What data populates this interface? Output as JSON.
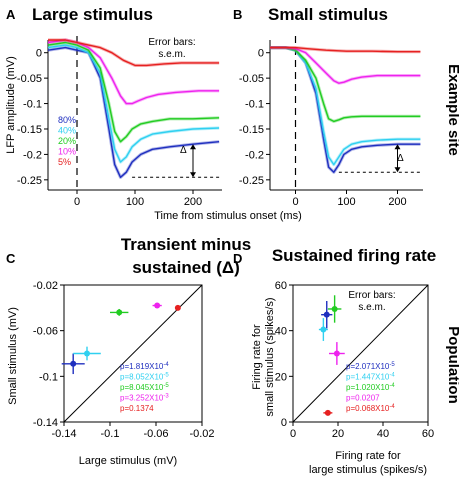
{
  "panels": {
    "A": {
      "letter": "A",
      "title": "Large stimulus",
      "delta": "Δ"
    },
    "B": {
      "letter": "B",
      "title": "Small stimulus",
      "delta": "Δ"
    },
    "C": {
      "letter": "C",
      "title_line1": "Transient minus",
      "title_line2": "sustained (Δ)"
    },
    "D": {
      "letter": "D",
      "title": "Sustained firing rate"
    }
  },
  "side_labels": {
    "top": "Example site",
    "bottom": "Population"
  },
  "labels": {
    "top_ylabel": "LFP amplitude (mV)",
    "top_xlabel": "Time from stimulus onset (ms)",
    "errorbars_line1": "Error bars:",
    "errorbars_line2": "s.e.m.",
    "c_ylabel": "Small stimulus (mV)",
    "c_xlabel": "Large stimulus (mV)",
    "d_ylabel_line1": "Firing rate for",
    "d_ylabel_line2": "small stimulus (spikes/s)",
    "d_xlabel_line1": "Firing rate for",
    "d_xlabel_line2": "large stimulus (spikes/s)"
  },
  "legend": [
    {
      "label": "80%",
      "color": "#1f2fbf"
    },
    {
      "label": "40%",
      "color": "#2fd0f0"
    },
    {
      "label": "20%",
      "color": "#22cc22"
    },
    {
      "label": "10%",
      "color": "#ee22ee"
    },
    {
      "label": "5%",
      "color": "#e62020"
    }
  ],
  "chart_data": [
    {
      "type": "line",
      "panel": "A",
      "xlim": [
        -50,
        250
      ],
      "ylim": [
        -0.27,
        0.025
      ],
      "xticks": [
        0,
        100,
        200
      ],
      "yticks": [
        0,
        -0.05,
        -0.1,
        -0.15,
        -0.2,
        -0.25
      ],
      "ytick_labels": [
        "0",
        "-0.05",
        "-0.1",
        "-0.15",
        "-0.2",
        "-0.25"
      ],
      "series": [
        {
          "name": "80%",
          "color": "#1f2fbf",
          "x": [
            -50,
            -20,
            0,
            20,
            40,
            55,
            65,
            75,
            85,
            95,
            110,
            130,
            160,
            200,
            245
          ],
          "y": [
            0.005,
            0.01,
            0.005,
            0.0,
            -0.05,
            -0.15,
            -0.22,
            -0.245,
            -0.235,
            -0.215,
            -0.2,
            -0.19,
            -0.185,
            -0.18,
            -0.175
          ]
        },
        {
          "name": "40%",
          "color": "#2fd0f0",
          "x": [
            -50,
            -20,
            0,
            20,
            40,
            55,
            65,
            75,
            85,
            95,
            110,
            130,
            160,
            200,
            245
          ],
          "y": [
            0.01,
            0.015,
            0.01,
            0.0,
            -0.04,
            -0.13,
            -0.19,
            -0.215,
            -0.205,
            -0.185,
            -0.17,
            -0.16,
            -0.155,
            -0.15,
            -0.148
          ]
        },
        {
          "name": "20%",
          "color": "#22cc22",
          "x": [
            -50,
            -20,
            0,
            20,
            40,
            55,
            65,
            75,
            85,
            95,
            110,
            130,
            160,
            200,
            245
          ],
          "y": [
            0.015,
            0.02,
            0.015,
            0.005,
            -0.03,
            -0.1,
            -0.155,
            -0.175,
            -0.165,
            -0.15,
            -0.14,
            -0.135,
            -0.13,
            -0.13,
            -0.128
          ]
        },
        {
          "name": "10%",
          "color": "#ee22ee",
          "x": [
            -50,
            -20,
            0,
            20,
            40,
            60,
            75,
            85,
            95,
            105,
            120,
            140,
            170,
            210,
            245
          ],
          "y": [
            0.02,
            0.025,
            0.02,
            0.01,
            -0.01,
            -0.05,
            -0.085,
            -0.1,
            -0.1,
            -0.095,
            -0.088,
            -0.082,
            -0.078,
            -0.075,
            -0.075
          ]
        },
        {
          "name": "5%",
          "color": "#e62020",
          "x": [
            -50,
            -20,
            0,
            20,
            40,
            60,
            80,
            100,
            120,
            150,
            180,
            210,
            245
          ],
          "y": [
            0.025,
            0.025,
            0.02,
            0.015,
            0.01,
            0.0,
            -0.015,
            -0.025,
            -0.025,
            -0.022,
            -0.02,
            -0.02,
            -0.02
          ]
        }
      ]
    },
    {
      "type": "line",
      "panel": "B",
      "xlim": [
        -50,
        250
      ],
      "ylim": [
        -0.27,
        0.025
      ],
      "xticks": [
        0,
        100,
        200
      ],
      "yticks": [
        0,
        -0.05,
        -0.1,
        -0.15,
        -0.2,
        -0.25
      ],
      "ytick_labels": [
        "0",
        "-0.05",
        "-0.1",
        "-0.15",
        "-0.2",
        "-0.25"
      ],
      "series": [
        {
          "name": "80%",
          "color": "#1f2fbf",
          "x": [
            -50,
            -20,
            0,
            20,
            40,
            55,
            65,
            75,
            85,
            95,
            110,
            130,
            160,
            200,
            245
          ],
          "y": [
            0.01,
            0.01,
            0.005,
            -0.02,
            -0.08,
            -0.17,
            -0.225,
            -0.235,
            -0.22,
            -0.2,
            -0.19,
            -0.185,
            -0.182,
            -0.18,
            -0.18
          ]
        },
        {
          "name": "40%",
          "color": "#2fd0f0",
          "x": [
            -50,
            -20,
            0,
            20,
            40,
            55,
            65,
            75,
            85,
            95,
            110,
            130,
            160,
            200,
            245
          ],
          "y": [
            0.01,
            0.01,
            0.005,
            -0.02,
            -0.07,
            -0.155,
            -0.205,
            -0.22,
            -0.205,
            -0.19,
            -0.18,
            -0.175,
            -0.172,
            -0.17,
            -0.17
          ]
        },
        {
          "name": "20%",
          "color": "#22cc22",
          "x": [
            -50,
            -20,
            0,
            20,
            40,
            55,
            65,
            75,
            85,
            95,
            110,
            130,
            160,
            200,
            245
          ],
          "y": [
            0.01,
            0.01,
            0.005,
            -0.015,
            -0.05,
            -0.1,
            -0.13,
            -0.135,
            -0.132,
            -0.128,
            -0.126,
            -0.125,
            -0.125,
            -0.125,
            -0.125
          ]
        },
        {
          "name": "10%",
          "color": "#ee22ee",
          "x": [
            -50,
            -20,
            0,
            20,
            40,
            60,
            75,
            85,
            95,
            110,
            130,
            160,
            200,
            245
          ],
          "y": [
            0.01,
            0.01,
            0.008,
            0.0,
            -0.02,
            -0.04,
            -0.055,
            -0.06,
            -0.058,
            -0.052,
            -0.048,
            -0.045,
            -0.045,
            -0.045
          ]
        },
        {
          "name": "5%",
          "color": "#e62020",
          "x": [
            -50,
            -20,
            0,
            20,
            60,
            100,
            150,
            200,
            245
          ],
          "y": [
            0.01,
            0.01,
            0.01,
            0.008,
            0.005,
            0.003,
            0.003,
            0.002,
            0.002
          ]
        }
      ]
    },
    {
      "type": "scatter",
      "panel": "C",
      "xlabel": "Large stimulus (mV)",
      "ylabel": "Small stimulus (mV)",
      "xlim": [
        -0.14,
        -0.02
      ],
      "ylim": [
        -0.14,
        -0.02
      ],
      "xticks": [
        -0.14,
        -0.1,
        -0.06,
        -0.02
      ],
      "yticks": [
        -0.02,
        -0.06,
        -0.1,
        -0.14
      ],
      "points": [
        {
          "contrast": "80%",
          "color": "#1f2fbf",
          "x": -0.132,
          "y": -0.089,
          "xerr": 0.01,
          "yerr": 0.009
        },
        {
          "contrast": "40%",
          "color": "#2fd0f0",
          "x": -0.12,
          "y": -0.08,
          "xerr": 0.012,
          "yerr": 0.006
        },
        {
          "contrast": "20%",
          "color": "#22cc22",
          "x": -0.092,
          "y": -0.044,
          "xerr": 0.008,
          "yerr": 0.003
        },
        {
          "contrast": "10%",
          "color": "#ee22ee",
          "x": -0.059,
          "y": -0.038,
          "xerr": 0.004,
          "yerr": 0.002
        },
        {
          "contrast": "5%",
          "color": "#e62020",
          "x": -0.041,
          "y": -0.04,
          "xerr": 0.001,
          "yerr": 0.001
        }
      ],
      "pvalues": [
        {
          "base": "p=1.819X10",
          "exp": "-4",
          "color": "#1f2fbf"
        },
        {
          "base": "p=8.052X10",
          "exp": "-5",
          "color": "#2fd0f0"
        },
        {
          "base": "p=8.045X10",
          "exp": "-5",
          "color": "#22cc22"
        },
        {
          "base": "p=3.252X10",
          "exp": "-3",
          "color": "#ee22ee"
        },
        {
          "base": "p=0.1374",
          "exp": "",
          "color": "#e62020"
        }
      ]
    },
    {
      "type": "scatter",
      "panel": "D",
      "xlabel": "Firing rate for large stimulus (spikes/s)",
      "ylabel": "Firing rate for small stimulus (spikes/s)",
      "xlim": [
        0,
        60
      ],
      "ylim": [
        0,
        60
      ],
      "xticks": [
        0,
        20,
        40,
        60
      ],
      "yticks": [
        0,
        20,
        40,
        60
      ],
      "points": [
        {
          "contrast": "80%",
          "color": "#1f2fbf",
          "x": 15.0,
          "y": 47.0,
          "xerr": 2.5,
          "yerr": 6.0
        },
        {
          "contrast": "40%",
          "color": "#2fd0f0",
          "x": 13.5,
          "y": 40.5,
          "xerr": 2.0,
          "yerr": 5.0
        },
        {
          "contrast": "20%",
          "color": "#22cc22",
          "x": 18.5,
          "y": 49.5,
          "xerr": 3.0,
          "yerr": 6.0
        },
        {
          "contrast": "10%",
          "color": "#ee22ee",
          "x": 19.5,
          "y": 30.0,
          "xerr": 3.5,
          "yerr": 5.0
        },
        {
          "contrast": "5%",
          "color": "#e62020",
          "x": 15.5,
          "y": 4.0,
          "xerr": 2.0,
          "yerr": 0.5
        }
      ],
      "pvalues": [
        {
          "base": "p=2.071X10",
          "exp": "-5",
          "color": "#1f2fbf"
        },
        {
          "base": "p=1.447X10",
          "exp": "-4",
          "color": "#2fd0f0"
        },
        {
          "base": "p=1.020X10",
          "exp": "-4",
          "color": "#22cc22"
        },
        {
          "base": "p=0.0207",
          "exp": "",
          "color": "#ee22ee"
        },
        {
          "base": "p=0.068X10",
          "exp": "-4",
          "color": "#e62020"
        }
      ]
    }
  ]
}
